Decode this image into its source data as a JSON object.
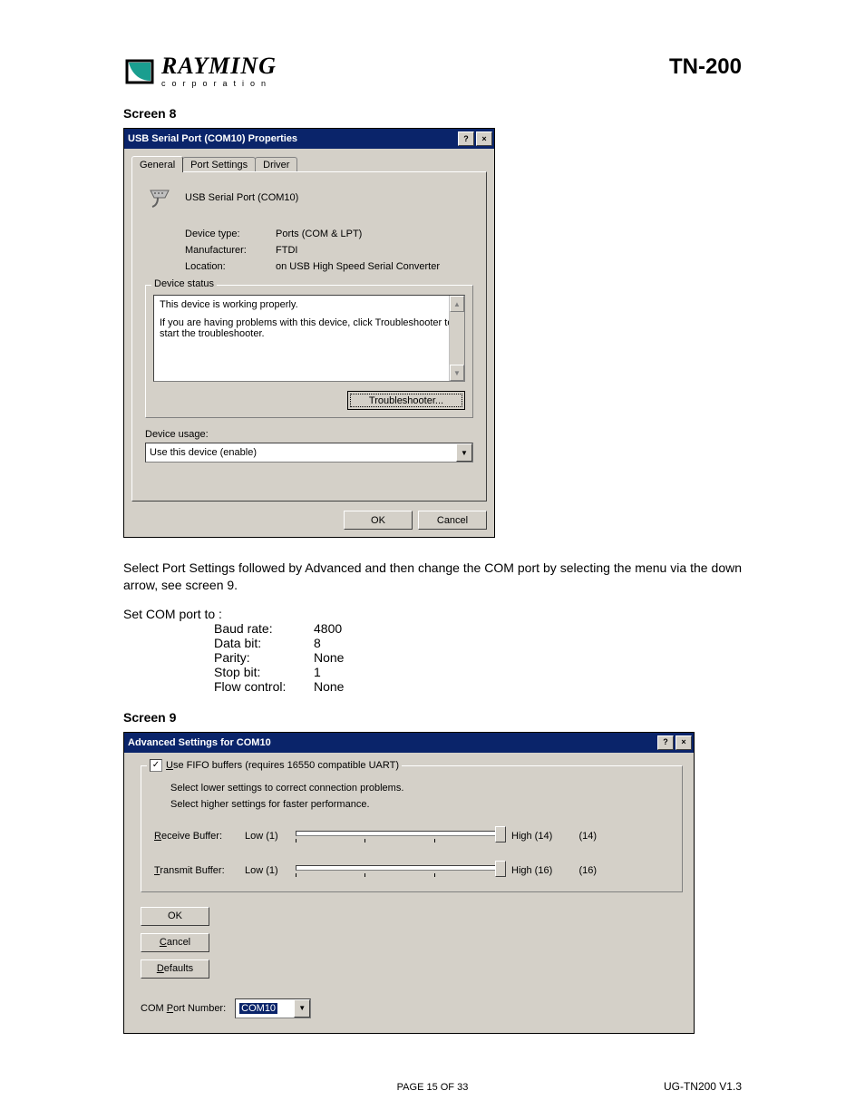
{
  "doc": {
    "brand": "RAYMING",
    "brand_sub": "corporation",
    "model": "TN-200",
    "screen8_label": "Screen 8",
    "screen9_label": "Screen 9",
    "page_footer": "PAGE 15 OF 33",
    "doc_footer": "UG-TN200 V1.3"
  },
  "colors": {
    "titlebar": "#0a246a",
    "dialog_bg": "#d4d0c8",
    "logo_accent": "#1a9e8f"
  },
  "screen8": {
    "title": "USB Serial Port (COM10) Properties",
    "tabs": [
      "General",
      "Port Settings",
      "Driver"
    ],
    "active_tab": 0,
    "device_name": "USB Serial Port (COM10)",
    "fields": {
      "type_label": "Device type:",
      "type_value": "Ports (COM & LPT)",
      "mfr_label": "Manufacturer:",
      "mfr_value": "FTDI",
      "loc_label": "Location:",
      "loc_value": "on USB High Speed Serial Converter"
    },
    "status_legend": "Device status",
    "status_line1": "This device is working properly.",
    "status_line2": "If you are having problems with this device, click Troubleshooter to start the troubleshooter.",
    "troubleshoot_btn": "Troubleshooter...",
    "usage_label": "Device usage:",
    "usage_value": "Use this device (enable)",
    "ok_btn": "OK",
    "cancel_btn": "Cancel"
  },
  "instructions": {
    "para": "Select Port Settings followed by Advanced and then change the COM port by selecting the menu via the down arrow, see screen 9.",
    "intro": "Set COM port to :",
    "rows": [
      [
        "Baud rate:",
        "4800"
      ],
      [
        "Data bit:",
        "8"
      ],
      [
        "Parity:",
        "None"
      ],
      [
        "Stop bit:",
        "1"
      ],
      [
        "Flow control:",
        "None"
      ]
    ]
  },
  "screen9": {
    "title": "Advanced Settings for COM10",
    "fifo_label": "Use FIFO buffers (requires 16550 compatible UART)",
    "hint1": "Select lower settings to correct connection problems.",
    "hint2": "Select higher settings for faster performance.",
    "rx": {
      "label": "Receive Buffer:",
      "low": "Low (1)",
      "high": "High (14)",
      "value": "(14)",
      "ticks": 4,
      "pos_pct": 100
    },
    "tx": {
      "label": "Transmit Buffer:",
      "low": "Low (1)",
      "high": "High (16)",
      "value": "(16)",
      "ticks": 4,
      "pos_pct": 100
    },
    "ok_btn": "OK",
    "cancel_btn": "Cancel",
    "defaults_btn": "Defaults",
    "comport_label": "COM Port Number:",
    "comport_value": "COM10"
  }
}
